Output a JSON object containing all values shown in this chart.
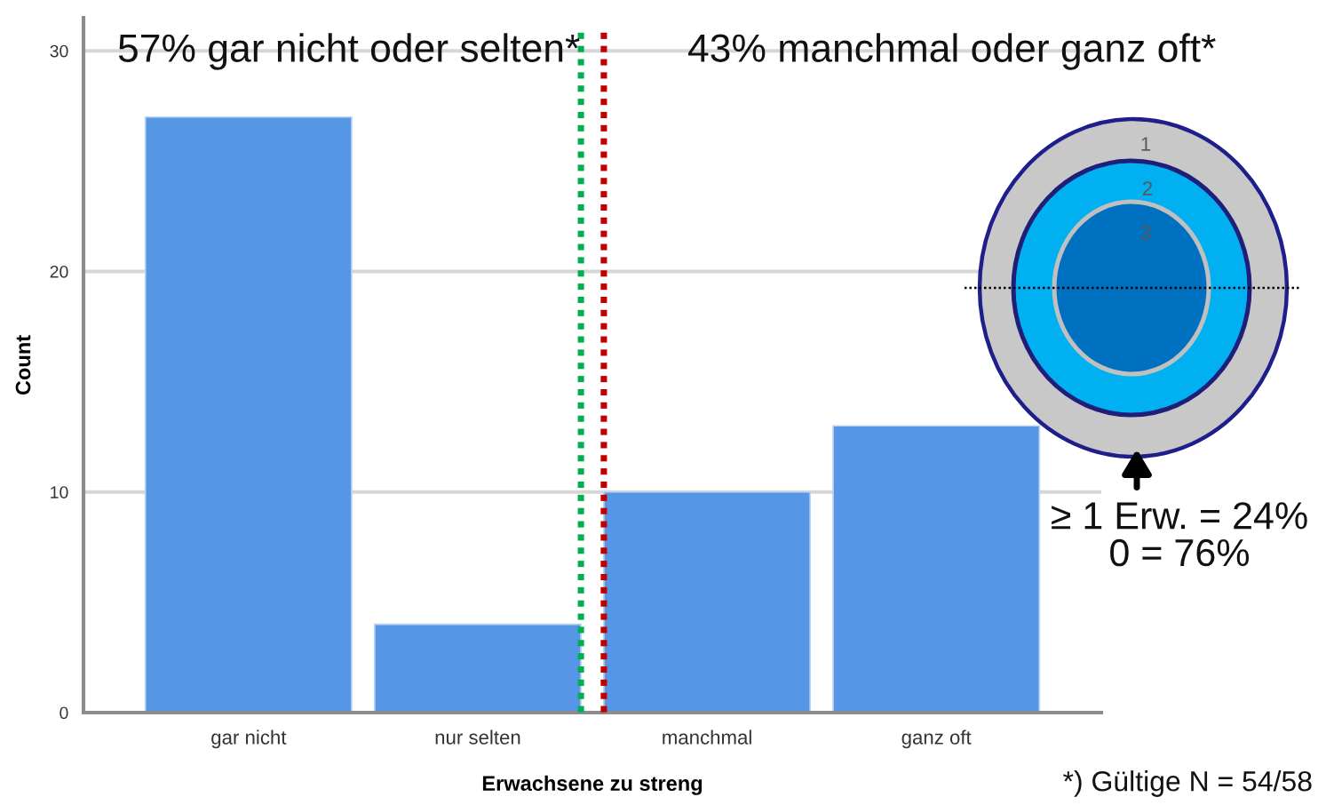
{
  "chart_data": {
    "type": "bar",
    "categories": [
      "gar nicht",
      "nur selten",
      "manchmal",
      "ganz oft"
    ],
    "values": [
      27,
      4,
      10,
      13
    ],
    "color": "#5596e5",
    "xlabel": "Erwachsene zu streng",
    "ylabel": "Count",
    "ylim": [
      0,
      31.5
    ],
    "yticks": [
      0,
      10,
      20,
      30
    ],
    "grid": "y",
    "annotations": [
      "57% gar nicht oder selten*",
      "43% manchmal oder ganz oft*",
      "1",
      "2",
      "3",
      "≥ 1 Erw. = 24%\n0 = 76%",
      "*) Gültige N = 54/58"
    ]
  }
}
